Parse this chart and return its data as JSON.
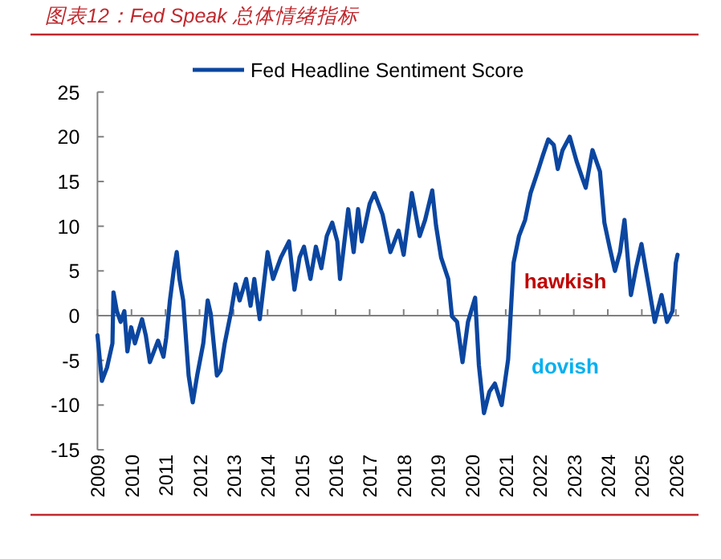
{
  "chart_data": {
    "type": "line",
    "title": "图表12：Fed Speak 总体情绪指标",
    "x": [
      2009.0,
      2009.13,
      2009.28,
      2009.44,
      2009.47,
      2009.57,
      2009.68,
      2009.79,
      2009.88,
      2009.99,
      2010.1,
      2010.31,
      2010.42,
      2010.54,
      2010.78,
      2010.94,
      2011.02,
      2011.13,
      2011.25,
      2011.33,
      2011.41,
      2011.52,
      2011.68,
      2011.8,
      2011.93,
      2012.11,
      2012.24,
      2012.33,
      2012.51,
      2012.62,
      2012.74,
      2012.93,
      2013.06,
      2013.18,
      2013.37,
      2013.5,
      2013.61,
      2013.77,
      2014.0,
      2014.16,
      2014.39,
      2014.63,
      2014.79,
      2014.94,
      2015.07,
      2015.26,
      2015.42,
      2015.58,
      2015.74,
      2015.9,
      2016.05,
      2016.13,
      2016.37,
      2016.53,
      2016.66,
      2016.77,
      2017.0,
      2017.14,
      2017.38,
      2017.61,
      2017.85,
      2018.0,
      2018.24,
      2018.47,
      2018.63,
      2018.84,
      2018.95,
      2019.1,
      2019.31,
      2019.42,
      2019.57,
      2019.73,
      2019.89,
      2020.1,
      2020.21,
      2020.36,
      2020.52,
      2020.68,
      2020.88,
      2021.07,
      2021.23,
      2021.39,
      2021.57,
      2021.73,
      2021.94,
      2022.09,
      2022.25,
      2022.41,
      2022.53,
      2022.67,
      2022.88,
      2023.08,
      2023.24,
      2023.35,
      2023.55,
      2023.77,
      2023.9,
      2024.05,
      2024.21,
      2024.36,
      2024.49,
      2024.68,
      2024.83,
      2024.99,
      2025.11,
      2025.22,
      2025.38,
      2025.58,
      2025.74,
      2025.9,
      2026.0,
      2026.05
    ],
    "series": [
      {
        "name": "Fed Headline Sentiment Score",
        "color": "#0b46a0",
        "values": [
          -2.2,
          -7.3,
          -5.8,
          -3.1,
          2.6,
          0.5,
          -0.7,
          0.5,
          -4.0,
          -1.3,
          -3.1,
          -0.4,
          -2.2,
          -5.2,
          -2.8,
          -4.6,
          -2.5,
          1.7,
          5.3,
          7.1,
          4.1,
          1.7,
          -6.7,
          -9.7,
          -6.7,
          -3.1,
          1.7,
          0.2,
          -6.7,
          -6.1,
          -3.1,
          0.5,
          3.5,
          1.7,
          4.1,
          1.1,
          4.1,
          -0.4,
          7.1,
          4.1,
          6.5,
          8.3,
          2.9,
          6.5,
          7.7,
          4.1,
          7.7,
          5.3,
          8.9,
          10.4,
          8.3,
          4.1,
          11.9,
          7.1,
          11.9,
          8.3,
          12.5,
          13.7,
          11.3,
          7.1,
          9.5,
          6.8,
          13.7,
          8.9,
          10.7,
          14.0,
          10.1,
          6.5,
          4.1,
          -0.1,
          -0.7,
          -5.2,
          -0.7,
          2.0,
          -5.5,
          -10.9,
          -8.5,
          -7.6,
          -10.0,
          -4.9,
          5.9,
          8.9,
          10.7,
          13.7,
          16.1,
          17.9,
          19.7,
          19.1,
          16.4,
          18.5,
          20.0,
          17.3,
          15.5,
          14.3,
          18.5,
          16.1,
          10.4,
          7.7,
          5.0,
          7.1,
          10.7,
          2.3,
          5.3,
          8.0,
          5.3,
          2.9,
          -0.7,
          2.3,
          -0.7,
          0.5,
          5.9,
          6.8
        ]
      }
    ],
    "xlim": [
      2009,
      2026.1
    ],
    "xticks": [
      2009,
      2010,
      2011,
      2012,
      2013,
      2014,
      2015,
      2016,
      2017,
      2018,
      2019,
      2020,
      2021,
      2022,
      2023,
      2024,
      2025,
      2026
    ],
    "ylim": [
      -15,
      25
    ],
    "yticks": [
      -15,
      -10,
      -5,
      0,
      5,
      10,
      15,
      20,
      25
    ],
    "legend": "top",
    "annotations": [
      "hawkish",
      "dovish"
    ]
  }
}
